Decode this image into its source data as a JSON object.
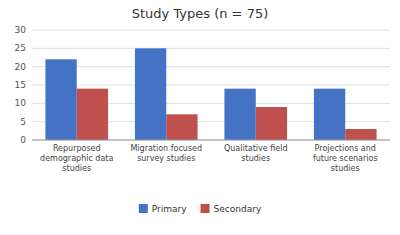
{
  "chart_data": {
    "type": "bar",
    "title": "Study Types (n = 75)",
    "categories": [
      "Repurposed\ndemographic data\nstudies",
      "Migration focused\nsurvey studies",
      "Qualitative field\nstudies",
      "Projections and\nfuture scenarios\nstudies"
    ],
    "series": [
      {
        "name": "Primary",
        "color": "#4472C4",
        "values": [
          22,
          25,
          14,
          14
        ]
      },
      {
        "name": "Secondary",
        "color": "#C0504D",
        "values": [
          14,
          7,
          9,
          3
        ]
      }
    ],
    "ylim": [
      0,
      30
    ],
    "yticks": [
      0,
      5,
      10,
      15,
      20,
      25,
      30
    ],
    "grid": true,
    "legend": "bottom"
  }
}
